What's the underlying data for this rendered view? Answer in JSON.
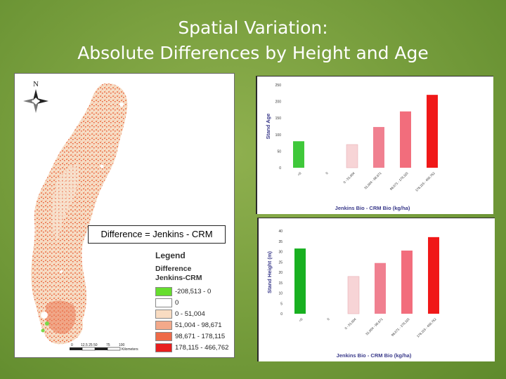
{
  "slide": {
    "title_line1": "Spatial Variation:",
    "title_line2": "Absolute Differences by Height and Age"
  },
  "map": {
    "difference_label": "Difference = Jenkins - CRM",
    "north_label": "N",
    "scale_label": "Kilometers",
    "scale_ticks": [
      "0",
      "12.5 25",
      "50",
      "75",
      "100"
    ],
    "legend": {
      "title": "Legend",
      "subtitle_line1": "Difference",
      "subtitle_line2": "Jenkins-CRM",
      "items": [
        {
          "label": "-208,513 - 0",
          "color": "#66dd2e"
        },
        {
          "label": "0",
          "color": "#ffffff"
        },
        {
          "label": "0 - 51,004",
          "color": "#f9dcc2"
        },
        {
          "label": "51,004 - 98,671",
          "color": "#f3a98a"
        },
        {
          "label": "98,671 - 178,115",
          "color": "#ee6a48"
        },
        {
          "label": "178,115 - 466,762",
          "color": "#e81e1e"
        }
      ]
    }
  },
  "chart_data": [
    {
      "type": "bar",
      "ylabel": "Stand Age",
      "xlabel": "Jenkins Bio - CRM Bio (kg/ha)",
      "ylim": [
        0,
        250
      ],
      "yticks": [
        "0",
        "50",
        "100",
        "150",
        "200",
        "250"
      ],
      "categories": [
        "<0",
        "0",
        "0 - 51,004",
        "51,004 - 98,671",
        "98,671 - 178,115",
        "178,115 - 466,762"
      ],
      "values": [
        80,
        0,
        70,
        123,
        170,
        220
      ],
      "colors": [
        "#3fc83a",
        "#ffffff",
        "#f7d4d6",
        "#f08090",
        "#f26d7c",
        "#f01818"
      ]
    },
    {
      "type": "bar",
      "ylabel": "Stand Height (m)",
      "xlabel": "Jenkins Bio - CRM Bio (kg/ha)",
      "ylim": [
        0,
        40
      ],
      "yticks": [
        "0",
        "5",
        "10",
        "15",
        "20",
        "25",
        "30",
        "35",
        "40"
      ],
      "categories": [
        "<0",
        "0",
        "0 - 51,004",
        "51,004 - 98,671",
        "98,671 - 178,115",
        "178,115 - 466,762"
      ],
      "values": [
        31.5,
        0,
        18,
        24.5,
        30.5,
        37
      ],
      "colors": [
        "#18b020",
        "#ffffff",
        "#f7d4d6",
        "#f08090",
        "#f26d7c",
        "#f01818"
      ]
    }
  ]
}
